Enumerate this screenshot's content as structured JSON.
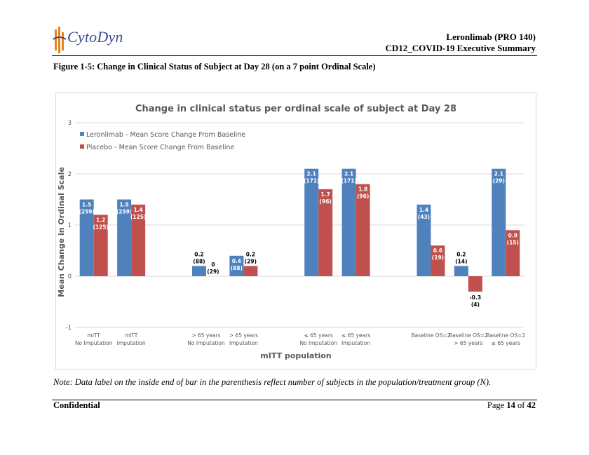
{
  "header": {
    "logo_text": "CytoDyn",
    "title_line1": "Leronlimab (PRO 140)",
    "title_line2": "CD12_COVID-19 Executive Summary"
  },
  "figure_title": "Figure 1-5: Change in Clinical Status of Subject at Day 28 (on a 7 point Ordinal Scale)",
  "note": "Note: Data label on the inside end of bar in the parenthesis reflect number of subjects in the population/treatment group (N).",
  "footer": {
    "confidential": "Confidential",
    "page_prefix": "Page",
    "page_num": "14",
    "page_of": "of",
    "page_total": "42"
  },
  "colors": {
    "leronlimab": "#4f81bd",
    "placebo": "#c0504d",
    "logo": "#3c4a93",
    "logo_mark": "#e8811f"
  },
  "chart_data": {
    "type": "bar",
    "title": "Change in clinical status per ordinal scale of subject at Day 28",
    "xlabel": "mITT population",
    "ylabel": "Mean Change in Ordinal Scale",
    "ylim": [
      -1,
      3
    ],
    "yticks": [
      "-1",
      "0",
      "1",
      "2",
      "3"
    ],
    "legend_position": "top-left",
    "categories": [
      {
        "line1": "mITT",
        "line2": "No Imputation"
      },
      {
        "line1": "mITT",
        "line2": "Imputation"
      },
      {
        "line1": "",
        "line2": ""
      },
      {
        "line1": "> 65 years",
        "line2": "No Imputation"
      },
      {
        "line1": "> 65 years",
        "line2": "Imputation"
      },
      {
        "line1": "",
        "line2": ""
      },
      {
        "line1": "≤ 65 years",
        "line2": "No Imputation"
      },
      {
        "line1": "≤ 65 years",
        "line2": "Imputation"
      },
      {
        "line1": "",
        "line2": ""
      },
      {
        "line1": "Baseline OS=2",
        "line2": ""
      },
      {
        "line1": "Baseline OS=2",
        "line2": "> 65 years"
      },
      {
        "line1": "Baseline OS=2",
        "line2": "≤ 65 years"
      }
    ],
    "series": [
      {
        "name": "Leronlimab - Mean Score Change From Baseline",
        "values": [
          1.5,
          1.5,
          null,
          0.2,
          0.4,
          null,
          2.1,
          2.1,
          null,
          1.4,
          0.2,
          2.1
        ],
        "labels": [
          "1.5",
          "1.5",
          "",
          "0.2",
          "0.4",
          "",
          "2.1",
          "2.1",
          "",
          "1.4",
          "0.2",
          "2.1"
        ],
        "n_labels": [
          "(259)",
          "(259)",
          "",
          "(88)",
          "(88)",
          "",
          "(171)",
          "(171)",
          "",
          "(43)",
          "(14)",
          "(29)"
        ]
      },
      {
        "name": "Placebo - Mean Score Change From Baseline",
        "values": [
          1.2,
          1.4,
          null,
          0,
          0.2,
          null,
          1.7,
          1.8,
          null,
          0.6,
          -0.3,
          0.9
        ],
        "labels": [
          "1.2",
          "1.4",
          "",
          "0",
          "0.2",
          "",
          "1.7",
          "1.8",
          "",
          "0.6",
          "-0.3",
          "0.9"
        ],
        "n_labels": [
          "(125)",
          "(125)",
          "",
          "(29)",
          "(29)",
          "",
          "(96)",
          "(96)",
          "",
          "(19)",
          "(4)",
          "(15)"
        ]
      }
    ]
  }
}
